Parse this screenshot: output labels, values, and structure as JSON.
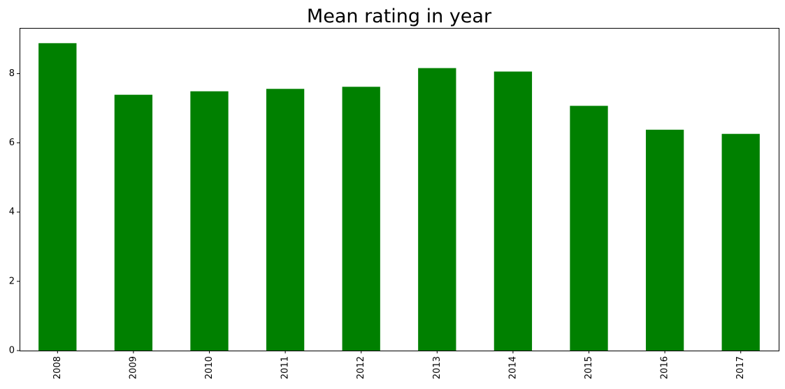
{
  "chart_data": {
    "type": "bar",
    "title": "Mean rating in year",
    "xlabel": "",
    "ylabel": "",
    "categories": [
      "2008",
      "2009",
      "2010",
      "2011",
      "2012",
      "2013",
      "2014",
      "2015",
      "2016",
      "2017"
    ],
    "values": [
      8.88,
      7.39,
      7.49,
      7.56,
      7.62,
      8.16,
      8.06,
      7.07,
      6.38,
      6.26
    ],
    "ylim": [
      0,
      9.32
    ],
    "yticks": [
      0,
      2,
      4,
      6,
      8
    ],
    "xtick_rotation": "vertical",
    "grid": false,
    "legend": "none",
    "bar_color": "#008000"
  }
}
